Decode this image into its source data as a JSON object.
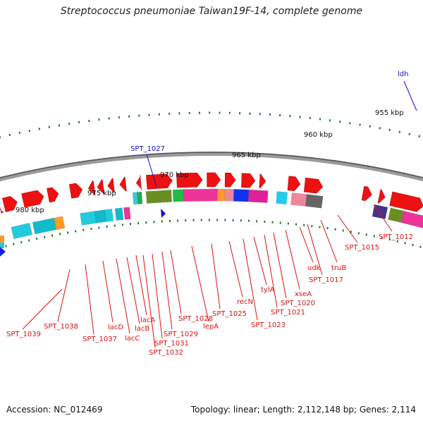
{
  "title": "Streptococcus pneumoniae Taiwan19F-14, complete genome",
  "footer": {
    "accession": "Accession: NC_012469",
    "topology": "Topology: linear; Length: 2,112,148 bp; Genes: 2,114"
  },
  "colors": {
    "backbone": "#777777",
    "feature_arrow": "#ee1111",
    "gene_label": "#dd1111",
    "highlight_label": "#1111cc",
    "ticks": "#227722"
  },
  "scale_labels": [
    "955 kbp",
    "960 kbp",
    "965 kbp",
    "970 kbp",
    "975 kbp",
    "980 kbp"
  ],
  "highlight_labels": [
    "ldh",
    "SPT_1027"
  ],
  "gene_labels": [
    "SPT_1012",
    "SPT_1015",
    "truB",
    "SPT_1017",
    "udk",
    "xseA",
    "SPT_1020",
    "SPT_1021",
    "tylA",
    "SPT_1023",
    "recN",
    "SPT_1025",
    "lepA",
    "SPT_1028",
    "SPT_1029",
    "lacA",
    "SPT_1031",
    "lacB",
    "SPT_1032",
    "lacC",
    "lacD",
    "SPT_1037",
    "SPT_1038",
    "SPT_1039"
  ]
}
